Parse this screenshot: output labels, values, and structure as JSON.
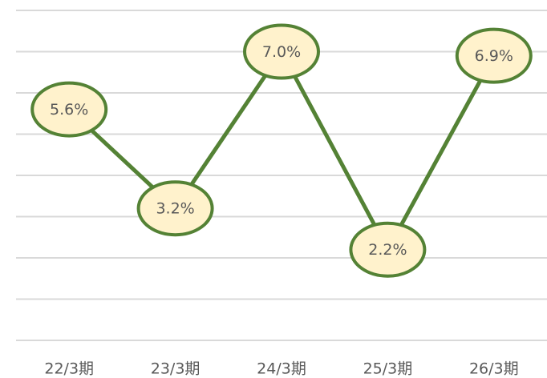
{
  "chart_data": {
    "type": "line",
    "categories": [
      "22/3期",
      "23/3期",
      "24/3期",
      "25/3期",
      "26/3期"
    ],
    "series": [
      {
        "values": [
          5.6,
          3.2,
          7.0,
          2.2,
          6.9
        ],
        "value_labels": [
          "5.6%",
          "3.2%",
          "7.0%",
          "2.2%",
          "6.9%"
        ],
        "color": "#548235",
        "marker_fill": "#fff2cc"
      }
    ],
    "ylim": [
      0,
      8
    ],
    "yticks": [
      0,
      1,
      2,
      3,
      4,
      5,
      6,
      7,
      8
    ],
    "grid": true
  }
}
